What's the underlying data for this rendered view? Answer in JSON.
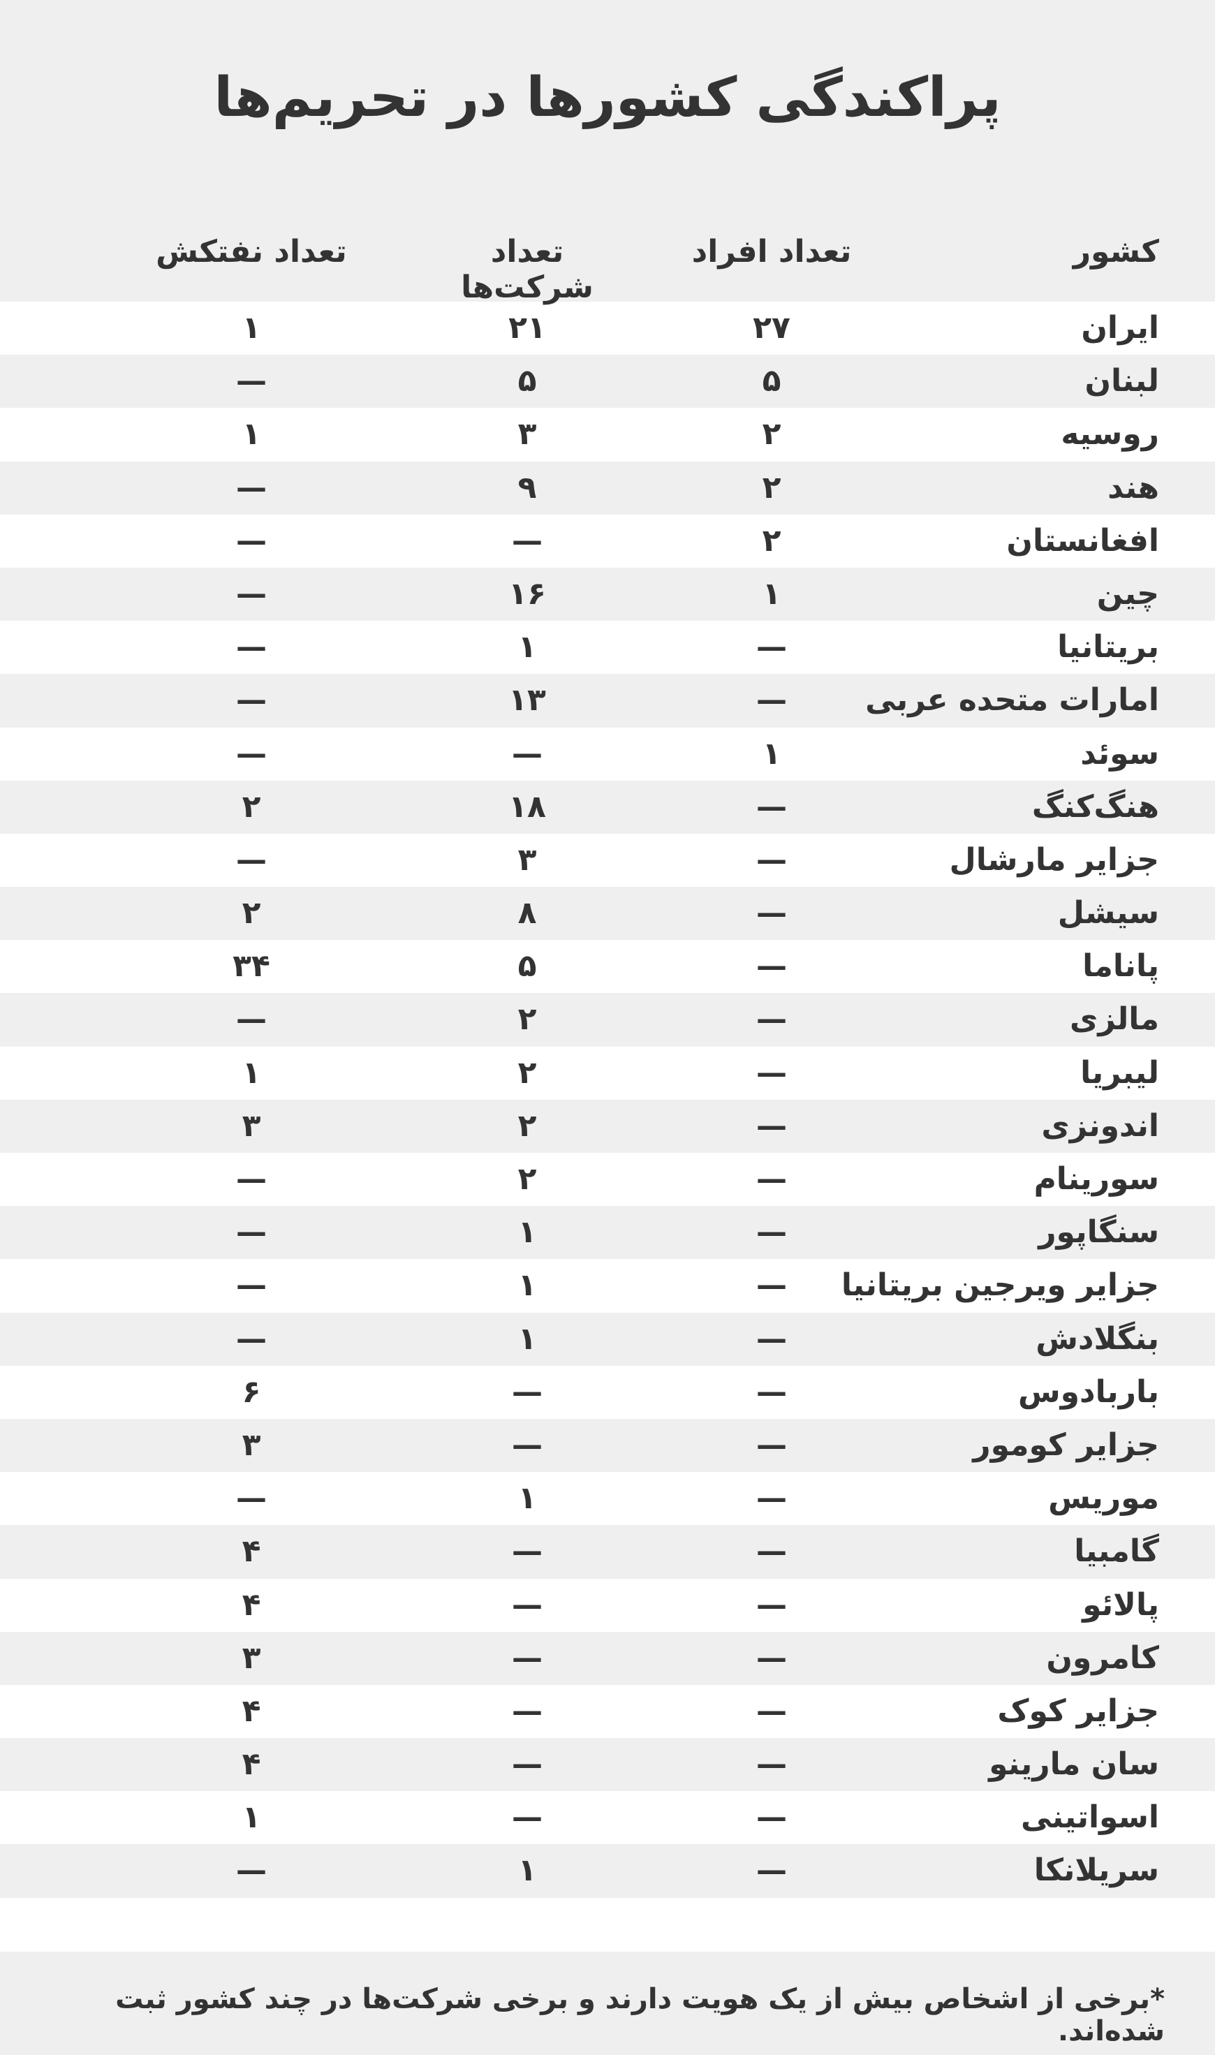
{
  "title": "پراکندگی کشورها در تحریم‌ها",
  "footnote": "*برخی از اشخاص بیش از یک هویت دارند و برخی شرکت‌ها در چند کشور ثبت شده‌اند.",
  "chart_data": {
    "type": "table",
    "columns": [
      "کشور",
      "تعداد افراد",
      "تعداد شرکت‌ها",
      "تعداد نفتکش"
    ],
    "rows": [
      [
        "ایران",
        "۲۷",
        "۲۱",
        "۱"
      ],
      [
        "لبنان",
        "۵",
        "۵",
        "—"
      ],
      [
        "روسیه",
        "۲",
        "۳",
        "۱"
      ],
      [
        "هند",
        "۲",
        "۹",
        "—"
      ],
      [
        "افغانستان",
        "۲",
        "—",
        "—"
      ],
      [
        "چین",
        "۱",
        "۱۶",
        "—"
      ],
      [
        "بریتانیا",
        "—",
        "۱",
        "—"
      ],
      [
        "امارات متحده عربی",
        "—",
        "۱۳",
        "—"
      ],
      [
        "سوئد",
        "۱",
        "—",
        "—"
      ],
      [
        "هنگ‌کنگ",
        "—",
        "۱۸",
        "۲"
      ],
      [
        "جزایر مارشال",
        "—",
        "۳",
        "—"
      ],
      [
        "سیشل",
        "—",
        "۸",
        "۲"
      ],
      [
        "پاناما",
        "—",
        "۵",
        "۳۴"
      ],
      [
        "مالزی",
        "—",
        "۲",
        "—"
      ],
      [
        "لیبریا",
        "—",
        "۲",
        "۱"
      ],
      [
        "اندونزی",
        "—",
        "۲",
        "۳"
      ],
      [
        "سورینام",
        "—",
        "۲",
        "—"
      ],
      [
        "سنگاپور",
        "—",
        "۱",
        "—"
      ],
      [
        "جزایر ویرجین بریتانیا",
        "—",
        "۱",
        "—"
      ],
      [
        "بنگلادش",
        "—",
        "۱",
        "—"
      ],
      [
        "باربادوس",
        "—",
        "—",
        "۶"
      ],
      [
        "جزایر کومور",
        "—",
        "—",
        "۳"
      ],
      [
        "موریس",
        "—",
        "۱",
        "—"
      ],
      [
        "گامبیا",
        "—",
        "—",
        "۴"
      ],
      [
        "پالائو",
        "—",
        "—",
        "۴"
      ],
      [
        "کامرون",
        "—",
        "—",
        "۳"
      ],
      [
        "جزایر کوک",
        "—",
        "—",
        "۴"
      ],
      [
        "سان مارینو",
        "—",
        "—",
        "۴"
      ],
      [
        "اسواتینی",
        "—",
        "—",
        "۱"
      ],
      [
        "سریلانکا",
        "—",
        "۱",
        "—"
      ]
    ]
  },
  "colors": {
    "text": "#333333",
    "band": "#efefef",
    "background": "#ffffff"
  }
}
